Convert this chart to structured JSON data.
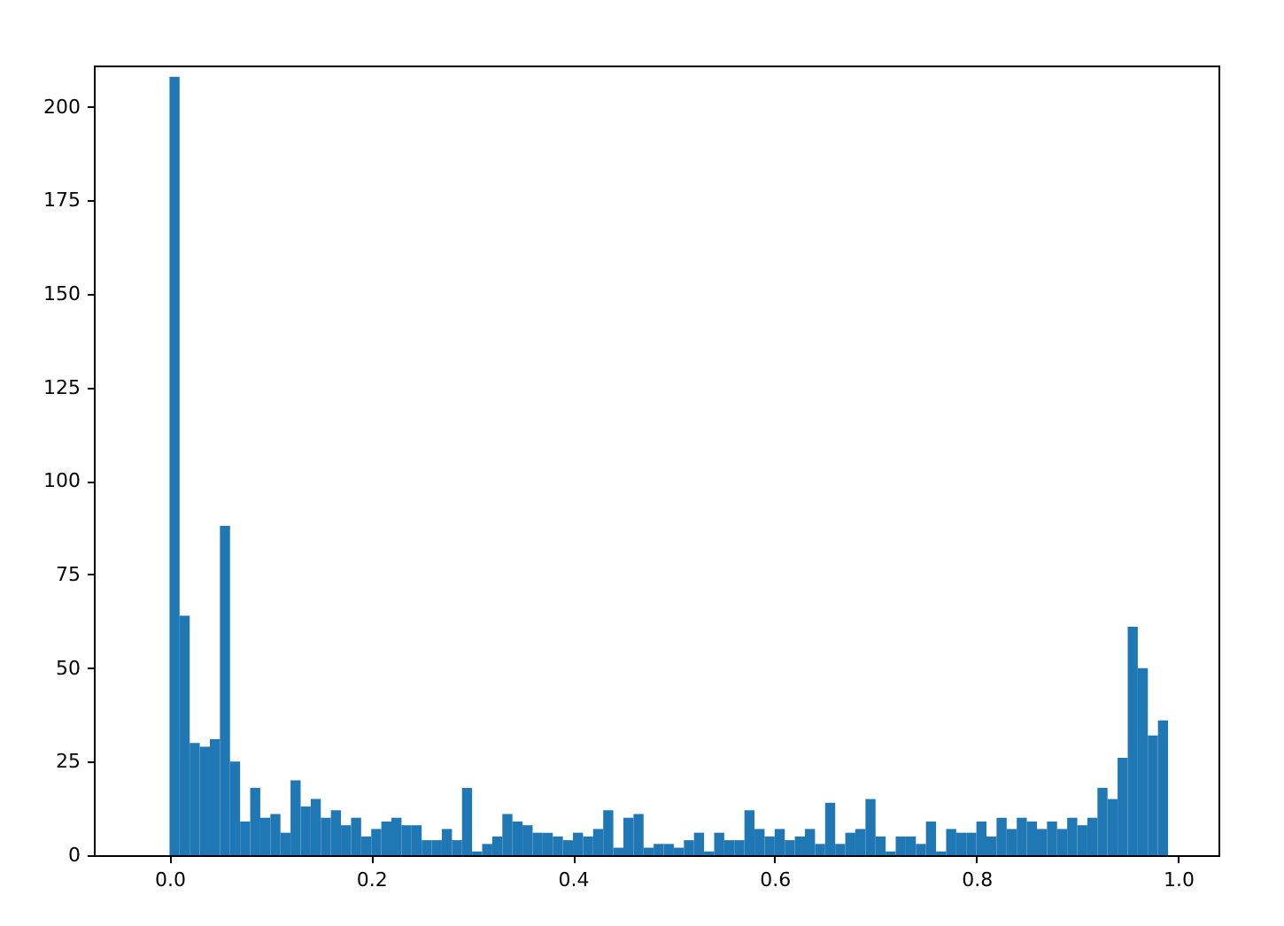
{
  "chart_data": {
    "type": "histogram",
    "color": "#1f77b4",
    "bins": [
      0,
      0.01,
      0.02,
      0.03,
      0.04,
      0.05,
      0.06,
      0.07,
      0.08,
      0.09,
      0.1,
      0.11,
      0.12,
      0.13,
      0.14,
      0.15,
      0.16,
      0.17,
      0.18,
      0.19,
      0.2,
      0.21,
      0.22,
      0.23,
      0.24,
      0.25,
      0.26,
      0.27,
      0.28,
      0.29,
      0.3,
      0.31,
      0.32,
      0.33,
      0.34,
      0.35,
      0.36,
      0.37,
      0.38,
      0.39,
      0.4,
      0.41,
      0.42,
      0.43,
      0.44,
      0.45,
      0.46,
      0.47,
      0.48,
      0.49,
      0.5,
      0.51,
      0.52,
      0.53,
      0.54,
      0.55,
      0.56,
      0.57,
      0.58,
      0.59,
      0.6,
      0.61,
      0.62,
      0.63,
      0.64,
      0.65,
      0.66,
      0.67,
      0.68,
      0.69,
      0.7,
      0.71,
      0.72,
      0.73,
      0.74,
      0.75,
      0.76,
      0.77,
      0.78,
      0.79,
      0.8,
      0.81,
      0.82,
      0.83,
      0.84,
      0.85,
      0.86,
      0.87,
      0.88,
      0.89,
      0.9,
      0.91,
      0.92,
      0.93,
      0.94,
      0.95,
      0.96,
      0.97,
      0.98,
      0.99
    ],
    "values": [
      208,
      64,
      30,
      29,
      31,
      88,
      25,
      9,
      18,
      10,
      11,
      6,
      20,
      13,
      15,
      10,
      12,
      8,
      10,
      5,
      7,
      9,
      10,
      8,
      8,
      4,
      4,
      7,
      4,
      18,
      1,
      3,
      5,
      11,
      9,
      8,
      6,
      6,
      5,
      4,
      6,
      5,
      7,
      12,
      2,
      10,
      11,
      2,
      3,
      3,
      2,
      4,
      6,
      1,
      6,
      4,
      4,
      12,
      7,
      5,
      7,
      4,
      5,
      7,
      3,
      14,
      3,
      6,
      7,
      15,
      5,
      1,
      5,
      5,
      3,
      9,
      1,
      7,
      6,
      6,
      9,
      5,
      10,
      7,
      10,
      9,
      7,
      9,
      7,
      10,
      8,
      10,
      18,
      15,
      26,
      61,
      50,
      32,
      36
    ],
    "xlim": [
      -0.075,
      1.04
    ],
    "ylim": [
      0,
      211
    ],
    "xticks": [
      {
        "value": 0,
        "label": "0.0"
      },
      0.2,
      0.4,
      0.6,
      0.8,
      {
        "value": 1,
        "label": "1.0"
      }
    ],
    "yticks": [
      0,
      25,
      50,
      75,
      100,
      125,
      150,
      175,
      200
    ],
    "grid": false
  }
}
